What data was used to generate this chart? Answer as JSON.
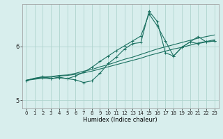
{
  "title": "",
  "xlabel": "Humidex (Indice chaleur)",
  "background_color": "#d8eeed",
  "grid_color": "#b0d4ce",
  "line_color": "#1a7060",
  "xlim": [
    -0.5,
    23.5
  ],
  "ylim": [
    4.85,
    6.78
  ],
  "yticks": [
    5,
    6
  ],
  "xticks": [
    0,
    1,
    2,
    3,
    4,
    5,
    6,
    7,
    8,
    9,
    10,
    11,
    12,
    13,
    14,
    15,
    16,
    17,
    18,
    19,
    20,
    21,
    22,
    23
  ],
  "line1_x": [
    0,
    1,
    2,
    3,
    4,
    5,
    6,
    7,
    8,
    9,
    10,
    11,
    12,
    13,
    14,
    15,
    16,
    17,
    18,
    19,
    20,
    21,
    22,
    23
  ],
  "line1_y": [
    5.37,
    5.4,
    5.42,
    5.43,
    5.45,
    5.46,
    5.48,
    5.51,
    5.54,
    5.58,
    5.62,
    5.66,
    5.7,
    5.74,
    5.78,
    5.83,
    5.87,
    5.91,
    5.95,
    5.98,
    6.02,
    6.06,
    6.09,
    6.12
  ],
  "line2_x": [
    0,
    1,
    2,
    3,
    4,
    5,
    6,
    7,
    8,
    9,
    10,
    11,
    12,
    13,
    14,
    15,
    16,
    17,
    18,
    19,
    20,
    21,
    22,
    23
  ],
  "line2_y": [
    5.37,
    5.41,
    5.43,
    5.44,
    5.46,
    5.47,
    5.5,
    5.54,
    5.57,
    5.62,
    5.66,
    5.71,
    5.76,
    5.8,
    5.85,
    5.9,
    5.95,
    5.99,
    6.03,
    6.07,
    6.11,
    6.15,
    6.18,
    6.21
  ],
  "line3_x": [
    0,
    2,
    3,
    4,
    5,
    6,
    7,
    8,
    9,
    10,
    11,
    12,
    13,
    14,
    15,
    16,
    17,
    18,
    19,
    20,
    21,
    22,
    23
  ],
  "line3_y": [
    5.37,
    5.41,
    5.4,
    5.42,
    5.4,
    5.45,
    5.52,
    5.61,
    5.72,
    5.82,
    5.92,
    6.01,
    6.1,
    6.19,
    6.6,
    6.38,
    6.1,
    5.82,
    5.98,
    6.08,
    6.18,
    6.08,
    6.1
  ],
  "line4_x": [
    0,
    2,
    3,
    4,
    5,
    6,
    7,
    8,
    9,
    10,
    11,
    12,
    13,
    14,
    15,
    16,
    17,
    18,
    19,
    20,
    21,
    22,
    23
  ],
  "line4_y": [
    5.37,
    5.44,
    5.4,
    5.43,
    5.4,
    5.38,
    5.33,
    5.36,
    5.5,
    5.68,
    5.8,
    5.95,
    6.05,
    6.07,
    6.65,
    6.46,
    5.88,
    5.82,
    5.98,
    6.08,
    6.05,
    6.08,
    6.1
  ],
  "xlabel_fontsize": 6.0,
  "tick_fontsize": 5.0
}
